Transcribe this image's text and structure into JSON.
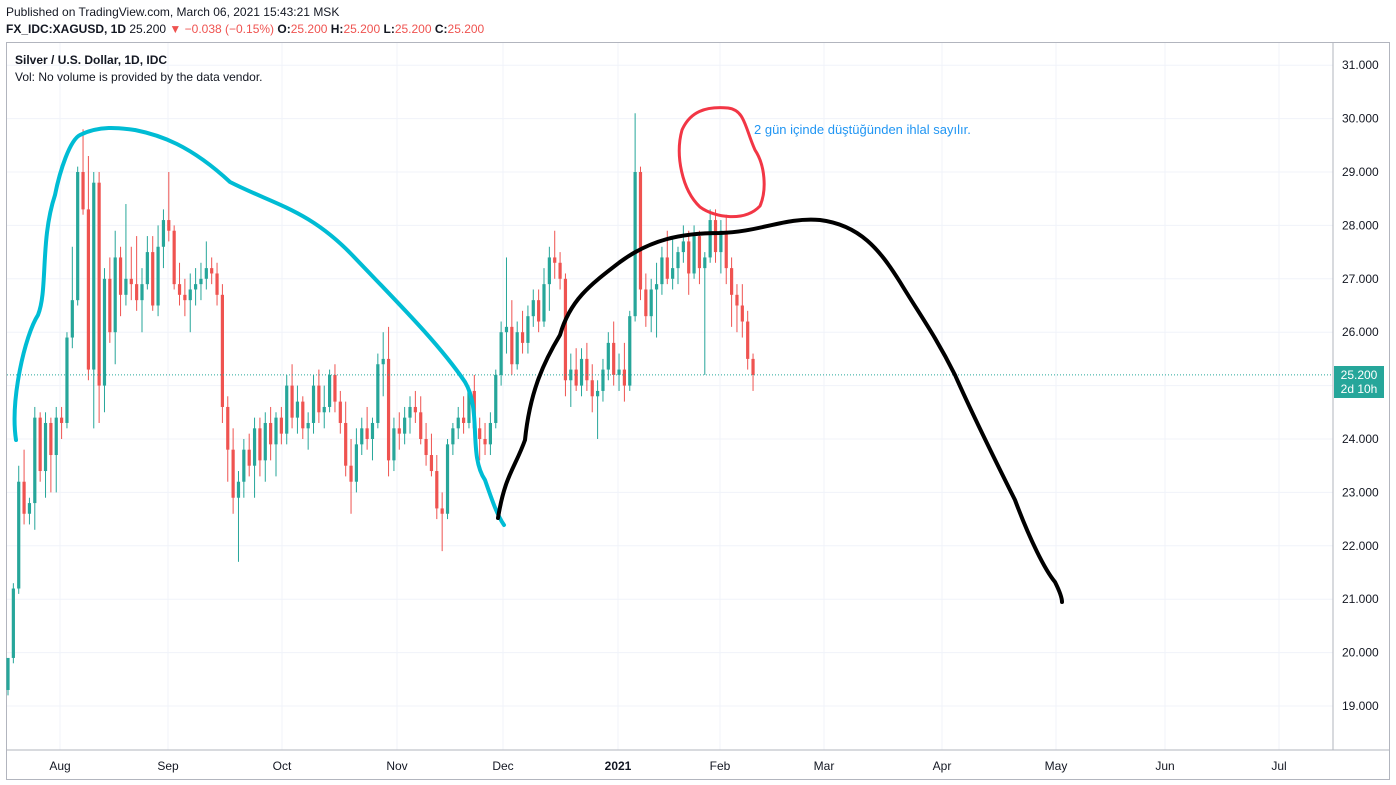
{
  "header": {
    "published": "Published on TradingView.com, March 06, 2021 15:43:21 MSK",
    "symbol": "FX_IDC:XAGUSD, 1D",
    "price": "25.200",
    "change": "▼ −0.038 (−0.15%)",
    "o_label": "O:",
    "o_value": "25.200",
    "h_label": "H:",
    "h_value": "25.200",
    "l_label": "L:",
    "l_value": "25.200",
    "c_label": "C:",
    "c_value": "25.200"
  },
  "legend": {
    "title": "Silver / U.S. Dollar, 1D, IDC",
    "volume": "Vol: No volume is provided by the data vendor."
  },
  "annotation": "2 gün içinde düştüğünden ihlal sayılır.",
  "price_tag": {
    "value": "25.200",
    "countdown": "2d 10h"
  },
  "colors": {
    "up": "#26a69a",
    "down": "#ef5350",
    "cyan_curve": "#00bcd4",
    "black_curve": "#000000",
    "red_circle": "#f23645",
    "annotation": "#2196f3",
    "grid": "#f0f3fa",
    "axis_text": "#131722"
  },
  "chart_data": {
    "type": "candlestick",
    "title": "Silver / U.S. Dollar, 1D, IDC",
    "ylim": [
      18.2,
      31.3
    ],
    "yticks": [
      "19.000",
      "20.000",
      "21.000",
      "22.000",
      "23.000",
      "24.000",
      "25.000",
      "26.000",
      "27.000",
      "28.000",
      "29.000",
      "30.000",
      "31.000"
    ],
    "xticks": [
      "Aug",
      "Sep",
      "Oct",
      "Nov",
      "Dec",
      "2021",
      "Feb",
      "Mar",
      "Apr",
      "May",
      "Jun",
      "Jul"
    ],
    "last_price": 25.2,
    "grid": true,
    "candles": [
      [
        19.3,
        19.9,
        19.2,
        19.9
      ],
      [
        19.9,
        21.3,
        19.8,
        21.2
      ],
      [
        21.2,
        23.5,
        21.1,
        23.2
      ],
      [
        23.2,
        23.8,
        22.4,
        22.6
      ],
      [
        22.6,
        22.9,
        22.4,
        22.8
      ],
      [
        22.8,
        24.6,
        22.3,
        24.4
      ],
      [
        24.4,
        24.5,
        23.2,
        23.4
      ],
      [
        23.4,
        24.5,
        22.9,
        24.3
      ],
      [
        24.3,
        24.4,
        23.0,
        23.7
      ],
      [
        23.7,
        24.6,
        23.0,
        24.4
      ],
      [
        24.4,
        24.6,
        24.0,
        24.3
      ],
      [
        24.3,
        26.0,
        24.2,
        25.9
      ],
      [
        25.9,
        27.6,
        25.7,
        26.6
      ],
      [
        26.6,
        29.1,
        26.5,
        29.0
      ],
      [
        29.0,
        29.8,
        28.2,
        28.3
      ],
      [
        28.3,
        29.3,
        25.1,
        25.3
      ],
      [
        25.3,
        29.0,
        24.2,
        28.8
      ],
      [
        28.8,
        29.0,
        24.3,
        25.0
      ],
      [
        25.0,
        27.2,
        24.5,
        27.0
      ],
      [
        27.0,
        27.4,
        25.8,
        26.0
      ],
      [
        26.0,
        27.9,
        25.4,
        27.4
      ],
      [
        27.4,
        27.6,
        26.3,
        26.7
      ],
      [
        26.7,
        28.4,
        26.5,
        27.0
      ],
      [
        27.0,
        27.6,
        26.6,
        26.9
      ],
      [
        26.9,
        27.8,
        26.4,
        26.6
      ],
      [
        26.6,
        27.2,
        26.0,
        26.9
      ],
      [
        26.9,
        27.8,
        26.8,
        27.5
      ],
      [
        27.5,
        27.8,
        26.4,
        26.5
      ],
      [
        26.5,
        28.0,
        26.3,
        27.6
      ],
      [
        27.6,
        28.3,
        27.2,
        28.1
      ],
      [
        28.1,
        29.0,
        27.7,
        27.9
      ],
      [
        27.9,
        28.0,
        26.8,
        26.9
      ],
      [
        26.9,
        27.3,
        26.5,
        26.7
      ],
      [
        26.7,
        27.0,
        26.3,
        26.6
      ],
      [
        26.6,
        27.1,
        26.0,
        26.8
      ],
      [
        26.8,
        27.2,
        26.5,
        26.9
      ],
      [
        26.9,
        27.3,
        26.6,
        27.0
      ],
      [
        27.0,
        27.7,
        26.8,
        27.2
      ],
      [
        27.2,
        27.4,
        26.9,
        27.1
      ],
      [
        27.1,
        27.3,
        26.5,
        26.7
      ],
      [
        26.7,
        26.9,
        24.3,
        24.6
      ],
      [
        24.6,
        24.8,
        23.2,
        23.8
      ],
      [
        23.8,
        24.2,
        22.6,
        22.9
      ],
      [
        22.9,
        23.4,
        21.7,
        23.2
      ],
      [
        23.2,
        24.0,
        22.9,
        23.8
      ],
      [
        23.8,
        24.1,
        23.3,
        23.5
      ],
      [
        23.5,
        24.4,
        22.9,
        24.2
      ],
      [
        24.2,
        24.4,
        23.3,
        23.6
      ],
      [
        23.6,
        24.5,
        23.2,
        24.3
      ],
      [
        24.3,
        24.6,
        23.6,
        23.9
      ],
      [
        23.9,
        24.5,
        23.3,
        24.4
      ],
      [
        24.4,
        24.6,
        23.9,
        24.1
      ],
      [
        24.1,
        25.2,
        23.9,
        25.0
      ],
      [
        25.0,
        25.4,
        24.2,
        24.4
      ],
      [
        24.4,
        25.0,
        24.1,
        24.7
      ],
      [
        24.7,
        24.8,
        24.0,
        24.2
      ],
      [
        24.2,
        24.5,
        23.8,
        24.3
      ],
      [
        24.3,
        25.2,
        24.1,
        25.0
      ],
      [
        25.0,
        25.3,
        24.3,
        24.5
      ],
      [
        24.5,
        25.0,
        24.2,
        24.6
      ],
      [
        24.6,
        25.3,
        24.5,
        25.2
      ],
      [
        25.2,
        25.4,
        24.5,
        24.7
      ],
      [
        24.7,
        24.9,
        24.1,
        24.3
      ],
      [
        24.3,
        24.7,
        23.3,
        23.5
      ],
      [
        23.5,
        24.0,
        22.6,
        23.2
      ],
      [
        23.2,
        24.2,
        23.0,
        23.9
      ],
      [
        23.9,
        24.4,
        23.7,
        24.2
      ],
      [
        24.2,
        24.6,
        23.8,
        24.0
      ],
      [
        24.0,
        24.4,
        23.6,
        24.3
      ],
      [
        24.3,
        25.6,
        24.2,
        25.4
      ],
      [
        25.4,
        26.0,
        24.8,
        25.5
      ],
      [
        25.5,
        26.1,
        23.3,
        23.6
      ],
      [
        23.6,
        24.4,
        23.4,
        24.2
      ],
      [
        24.2,
        24.5,
        23.8,
        24.1
      ],
      [
        24.1,
        24.6,
        23.9,
        24.4
      ],
      [
        24.4,
        24.8,
        24.1,
        24.6
      ],
      [
        24.6,
        24.9,
        24.3,
        24.5
      ],
      [
        24.5,
        24.8,
        23.9,
        24.0
      ],
      [
        24.0,
        24.3,
        23.5,
        23.7
      ],
      [
        23.7,
        24.1,
        23.3,
        23.4
      ],
      [
        23.4,
        23.7,
        22.5,
        22.7
      ],
      [
        22.7,
        23.0,
        21.9,
        22.6
      ],
      [
        22.6,
        24.0,
        22.5,
        23.9
      ],
      [
        23.9,
        24.3,
        23.7,
        24.2
      ],
      [
        24.2,
        24.6,
        24.0,
        24.4
      ],
      [
        24.4,
        24.8,
        24.1,
        24.3
      ],
      [
        24.3,
        25.0,
        24.2,
        24.9
      ],
      [
        24.9,
        25.2,
        24.0,
        24.2
      ],
      [
        24.2,
        24.4,
        23.6,
        24.0
      ],
      [
        24.0,
        24.3,
        23.7,
        23.9
      ],
      [
        23.9,
        24.5,
        23.7,
        24.3
      ],
      [
        24.3,
        25.3,
        24.2,
        25.2
      ],
      [
        25.2,
        26.2,
        25.0,
        26.0
      ],
      [
        26.0,
        27.4,
        25.6,
        26.1
      ],
      [
        26.1,
        26.6,
        25.2,
        25.4
      ],
      [
        25.4,
        26.2,
        25.3,
        26.0
      ],
      [
        26.0,
        26.4,
        25.6,
        25.8
      ],
      [
        25.8,
        26.5,
        25.6,
        26.3
      ],
      [
        26.3,
        26.8,
        26.1,
        26.6
      ],
      [
        26.6,
        26.8,
        26.0,
        26.2
      ],
      [
        26.2,
        27.2,
        26.1,
        26.9
      ],
      [
        26.9,
        27.6,
        26.4,
        27.4
      ],
      [
        27.4,
        27.9,
        27.0,
        27.3
      ],
      [
        27.3,
        27.5,
        26.8,
        27.0
      ],
      [
        27.0,
        27.1,
        24.8,
        25.1
      ],
      [
        25.1,
        25.6,
        24.6,
        25.3
      ],
      [
        25.3,
        25.7,
        24.9,
        25.0
      ],
      [
        25.0,
        25.7,
        24.8,
        25.5
      ],
      [
        25.5,
        25.8,
        24.9,
        25.1
      ],
      [
        25.1,
        25.4,
        24.5,
        24.8
      ],
      [
        24.8,
        25.1,
        24.0,
        24.9
      ],
      [
        24.9,
        25.5,
        24.7,
        25.3
      ],
      [
        25.3,
        26.0,
        25.1,
        25.8
      ],
      [
        25.8,
        26.2,
        25.0,
        25.2
      ],
      [
        25.2,
        25.6,
        24.9,
        25.3
      ],
      [
        25.3,
        25.8,
        24.7,
        25.0
      ],
      [
        25.0,
        26.4,
        24.9,
        26.3
      ],
      [
        26.3,
        30.1,
        26.2,
        29.0
      ],
      [
        29.0,
        29.1,
        26.6,
        26.8
      ],
      [
        26.8,
        27.1,
        26.1,
        26.3
      ],
      [
        26.3,
        27.0,
        26.0,
        26.8
      ],
      [
        26.8,
        27.3,
        25.9,
        26.9
      ],
      [
        26.9,
        27.6,
        26.7,
        27.4
      ],
      [
        27.4,
        27.9,
        26.9,
        27.0
      ],
      [
        27.0,
        27.8,
        26.8,
        27.2
      ],
      [
        27.2,
        27.6,
        26.9,
        27.5
      ],
      [
        27.5,
        28.0,
        27.3,
        27.7
      ],
      [
        27.7,
        27.9,
        26.7,
        27.1
      ],
      [
        27.1,
        28.0,
        27.0,
        27.8
      ],
      [
        27.8,
        27.9,
        26.9,
        27.2
      ],
      [
        27.2,
        27.5,
        25.2,
        27.4
      ],
      [
        27.4,
        28.3,
        27.3,
        28.1
      ],
      [
        28.1,
        28.3,
        27.3,
        27.5
      ],
      [
        27.5,
        28.1,
        27.1,
        27.9
      ],
      [
        27.9,
        28.2,
        26.9,
        27.2
      ],
      [
        27.2,
        27.4,
        26.1,
        26.7
      ],
      [
        26.7,
        26.9,
        26.0,
        26.5
      ],
      [
        26.5,
        26.9,
        25.9,
        26.2
      ],
      [
        26.2,
        26.4,
        25.3,
        25.5
      ],
      [
        25.5,
        25.6,
        24.9,
        25.2
      ]
    ]
  }
}
